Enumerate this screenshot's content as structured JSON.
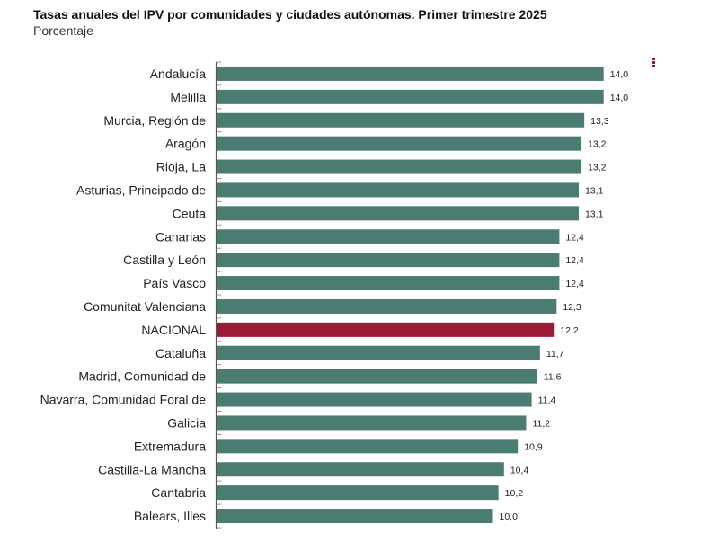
{
  "chart_data": {
    "type": "bar",
    "orientation": "horizontal",
    "title": "Tasas anuales del IPV por comunidades y ciudades autónomas. Primer trimestre 2025",
    "subtitle": "Porcentaje",
    "categories": [
      "Andalucía",
      "Melilla",
      "Murcia, Región de",
      "Aragón",
      "Rioja, La",
      "Asturias, Principado de",
      "Ceuta",
      "Canarias",
      "Castilla y León",
      "País Vasco",
      "Comunitat Valenciana",
      "NACIONAL",
      "Cataluña",
      "Madrid, Comunidad de",
      "Navarra, Comunidad Foral de",
      "Galicia",
      "Extremadura",
      "Castilla-La Mancha",
      "Cantabria",
      "Balears, Illes"
    ],
    "values": [
      14.0,
      14.0,
      13.3,
      13.2,
      13.2,
      13.1,
      13.1,
      12.4,
      12.4,
      12.4,
      12.3,
      12.2,
      11.7,
      11.6,
      11.4,
      11.2,
      10.9,
      10.4,
      10.2,
      10.0
    ],
    "labels": [
      "14,0",
      "14,0",
      "13,3",
      "13,2",
      "13,2",
      "13,1",
      "13,1",
      "12,4",
      "12,4",
      "12,4",
      "12,3",
      "12,2",
      "11,7",
      "11,6",
      "11,4",
      "11,2",
      "10,9",
      "10,4",
      "10,2",
      "10,0"
    ],
    "highlight": "NACIONAL",
    "xlim": [
      0,
      14
    ],
    "grid": false,
    "colors": {
      "bar": "#4a7c72",
      "highlight": "#9b1b34",
      "menu": "#8b2035"
    }
  },
  "menu_icon": "vertical-ellipsis-icon"
}
